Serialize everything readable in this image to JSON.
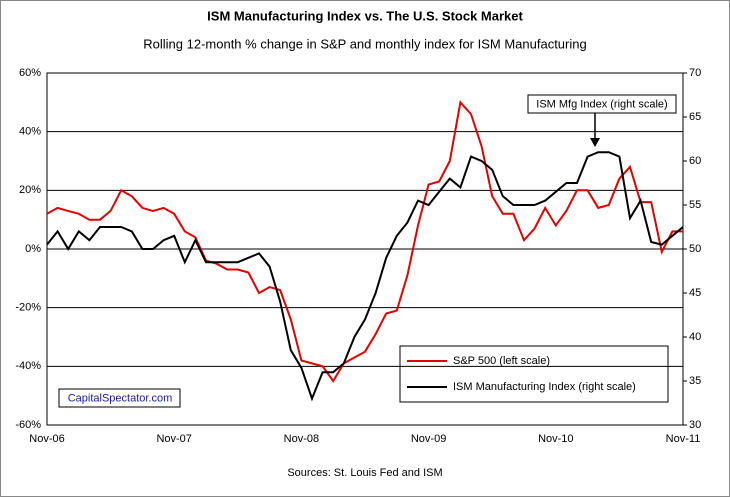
{
  "chart_data": {
    "type": "line",
    "title": "ISM Manufacturing Index vs. The U.S. Stock Market",
    "subtitle": "Rolling 12-month % change in S&P and monthly index for ISM Manufacturing",
    "source": "Sources: St. Louis Fed and ISM",
    "credit": "CapitalSpectator.com",
    "annotation": "ISM Mfg Index (right scale)",
    "categories": [
      "Nov-06",
      null,
      null,
      null,
      null,
      null,
      null,
      null,
      null,
      null,
      null,
      null,
      "Nov-07",
      null,
      null,
      null,
      null,
      null,
      null,
      null,
      null,
      null,
      null,
      null,
      "Nov-08",
      null,
      null,
      null,
      null,
      null,
      null,
      null,
      null,
      null,
      null,
      null,
      "Nov-09",
      null,
      null,
      null,
      null,
      null,
      null,
      null,
      null,
      null,
      null,
      null,
      "Nov-10",
      null,
      null,
      null,
      null,
      null,
      null,
      null,
      null,
      null,
      null,
      null,
      "Nov-11"
    ],
    "series": [
      {
        "name": "S&P 500 (left scale)",
        "color": "#e00000",
        "values": [
          12,
          14,
          13,
          12,
          10,
          10,
          13,
          20,
          18,
          14,
          13,
          14,
          12,
          6,
          4,
          -4,
          -5,
          -7,
          -7,
          -8,
          -15,
          -13,
          -14,
          -24,
          -38,
          -39,
          -40,
          -45,
          -39,
          -37,
          -35,
          -29,
          -22,
          -21,
          -9,
          8,
          22,
          23,
          30,
          50,
          46,
          35,
          18,
          12,
          12,
          3,
          7,
          14,
          8,
          13,
          20,
          20,
          14,
          15,
          24,
          28,
          16,
          16,
          -1,
          6,
          6
        ]
      },
      {
        "name": "ISM Manufacturing Index (right scale)",
        "color": "#000000",
        "axis": "y2",
        "values": [
          50.5,
          52,
          50,
          52,
          51,
          52.5,
          52.5,
          52.5,
          52,
          50,
          50,
          51,
          51.5,
          48.5,
          51,
          48.5,
          48.5,
          48.5,
          48.5,
          49,
          49.5,
          48,
          44,
          38.5,
          36.5,
          33,
          36,
          36,
          37,
          40,
          42,
          45,
          49,
          51.5,
          53,
          55.5,
          55,
          56.5,
          58,
          57,
          60.5,
          60,
          59,
          56,
          55,
          55,
          55,
          55.5,
          56.5,
          57.5,
          57.5,
          60.5,
          61,
          61,
          60.5,
          53.5,
          55.5,
          50.8,
          50.5,
          51.5,
          52.5
        ]
      }
    ],
    "ylim": [
      -60,
      60
    ],
    "yticks": [
      {
        "value": -60,
        "label": "-60%"
      },
      {
        "value": -40,
        "label": "-40%"
      },
      {
        "value": -20,
        "label": "-20%"
      },
      {
        "value": 0,
        "label": "0%"
      },
      {
        "value": 20,
        "label": "20%"
      },
      {
        "value": 40,
        "label": "40%"
      },
      {
        "value": 60,
        "label": "60%"
      }
    ],
    "y2lim": [
      30,
      70
    ],
    "y2ticks": [
      30,
      35,
      40,
      45,
      50,
      55,
      60,
      65,
      70
    ],
    "grid": true
  }
}
